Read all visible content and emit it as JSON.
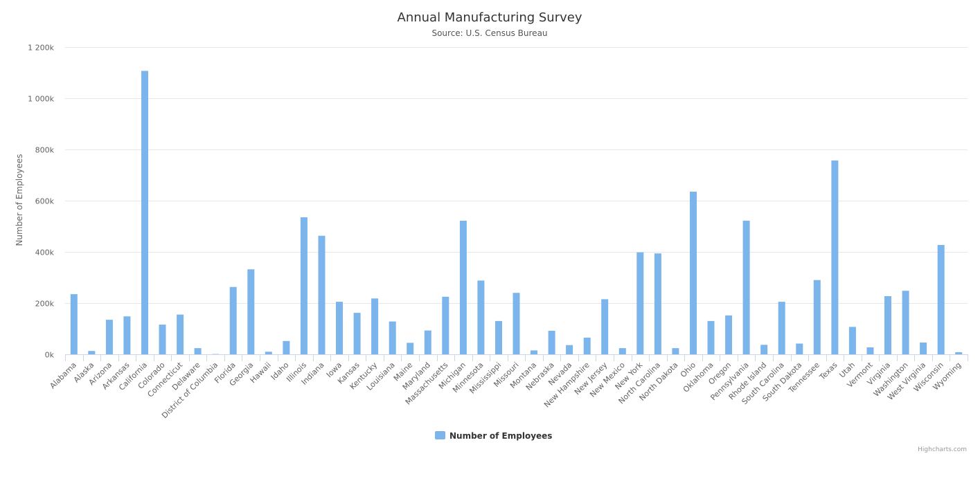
{
  "chart_data": {
    "type": "bar",
    "title": "Annual Manufacturing Survey",
    "subtitle": "Source: U.S. Census Bureau",
    "xlabel": "",
    "ylabel": "Number of Employees",
    "ylim": [
      0,
      1200000
    ],
    "yticks": [
      0,
      200000,
      400000,
      600000,
      800000,
      1000000,
      1200000
    ],
    "ytick_labels": [
      "0k",
      "200k",
      "400k",
      "600k",
      "800k",
      "1 000k",
      "1 200k"
    ],
    "grid": true,
    "legend_position": "bottom-center",
    "categories": [
      "Alabama",
      "Alaska",
      "Arizona",
      "Arkansas",
      "California",
      "Colorado",
      "Connecticut",
      "Delaware",
      "District of Columbia",
      "Florida",
      "Georgia",
      "Hawaii",
      "Idaho",
      "Illinois",
      "Indiana",
      "Iowa",
      "Kansas",
      "Kentucky",
      "Louisiana",
      "Maine",
      "Maryland",
      "Massachusetts",
      "Michigan",
      "Minnesota",
      "Mississippi",
      "Missouri",
      "Montana",
      "Nebraska",
      "Nevada",
      "New Hampshire",
      "New Jersey",
      "New Mexico",
      "New York",
      "North Carolina",
      "North Dakota",
      "Ohio",
      "Oklahoma",
      "Oregon",
      "Pennsylvania",
      "Rhode Island",
      "South Carolina",
      "South Dakota",
      "Tennessee",
      "Texas",
      "Utah",
      "Vermont",
      "Virginia",
      "Washington",
      "West Virginia",
      "Wisconsin",
      "Wyoming"
    ],
    "series": [
      {
        "name": "Number of Employees",
        "color": "#7cb5ec",
        "values": [
          235000,
          13000,
          135000,
          148000,
          1107000,
          116000,
          155000,
          24000,
          1000,
          263000,
          332000,
          10000,
          52000,
          535000,
          463000,
          205000,
          162000,
          218000,
          128000,
          45000,
          93000,
          225000,
          522000,
          288000,
          130000,
          240000,
          15000,
          92000,
          36000,
          65000,
          215000,
          24000,
          398000,
          394000,
          24000,
          635000,
          130000,
          152000,
          522000,
          37000,
          205000,
          42000,
          290000,
          757000,
          107000,
          27000,
          227000,
          248000,
          46000,
          427000,
          8000
        ]
      }
    ]
  },
  "credits": "Highcharts.com"
}
